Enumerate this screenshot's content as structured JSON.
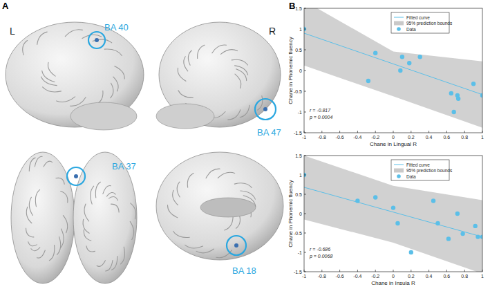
{
  "panel_labels": [
    "A",
    "B"
  ],
  "brain_views": {
    "hemisphere_labels": [
      "L",
      "R"
    ],
    "regions": [
      "BA 40",
      "BA 47",
      "BA 37",
      "BA 18"
    ],
    "color": "#2aa7e0"
  },
  "chart_data": [
    {
      "type": "scatter",
      "x_label": "Chane in Lingual R",
      "y_label": "Chane in Phonemic fluency",
      "xlim": [
        -1,
        1
      ],
      "ylim": [
        -1.5,
        1.5
      ],
      "xticks": [
        -1,
        -0.8,
        -0.6,
        -0.4,
        -0.2,
        0,
        0.2,
        0.4,
        0.6,
        0.8,
        1
      ],
      "yticks": [
        -1.5,
        -1,
        -0.5,
        0,
        0.5,
        1,
        1.5
      ],
      "grid": false,
      "legend": "top-right",
      "annotations": [
        "r = -0.817",
        "p = 0.0004"
      ],
      "series": [
        {
          "name": "Fitted curve",
          "type": "line",
          "color": "#5bbfe8",
          "x": [
            -1,
            1
          ],
          "values": [
            0.9,
            -0.58
          ]
        },
        {
          "name": "95% prediction bounds",
          "type": "area",
          "color": "#c9c9c9",
          "x": [
            -1,
            0,
            1
          ],
          "lower": [
            0.12,
            -0.62,
            -1.38
          ],
          "upper": [
            1.68,
            0.46,
            0.22
          ]
        },
        {
          "name": "Data",
          "type": "scatter",
          "color": "#5bbfe8",
          "marker": "circle",
          "x": [
            -1,
            -0.28,
            -0.2,
            0.08,
            0.1,
            0.18,
            0.3,
            0.65,
            0.68,
            0.72,
            0.73,
            0.9,
            1.0
          ],
          "values": [
            1.0,
            -0.25,
            0.42,
            0.0,
            0.33,
            0.18,
            0.33,
            -0.55,
            -1.0,
            -0.6,
            -0.68,
            -0.32,
            -0.6
          ]
        }
      ]
    },
    {
      "type": "scatter",
      "x_label": "Chane in Insula R",
      "y_label": "Chane in Phonemic fluency",
      "xlim": [
        -1,
        1
      ],
      "ylim": [
        -1.5,
        1.5
      ],
      "xticks": [
        -1,
        -0.8,
        -0.6,
        -0.4,
        -0.2,
        0,
        0.2,
        0.4,
        0.6,
        0.8,
        1
      ],
      "yticks": [
        -1.5,
        -1,
        -0.5,
        0,
        0.5,
        1,
        1.5
      ],
      "grid": false,
      "legend": "top-right",
      "annotations": [
        "r = -0.686",
        "p = 0.0068"
      ],
      "series": [
        {
          "name": "Fitted curve",
          "type": "line",
          "color": "#5bbfe8",
          "x": [
            -1,
            1
          ],
          "values": [
            0.68,
            -0.6
          ]
        },
        {
          "name": "95% prediction bounds",
          "type": "area",
          "color": "#c9c9c9",
          "x": [
            -1,
            0,
            1
          ],
          "lower": [
            -0.15,
            -0.75,
            -1.55
          ],
          "upper": [
            1.5,
            0.72,
            0.35
          ]
        },
        {
          "name": "Data",
          "type": "scatter",
          "color": "#5bbfe8",
          "marker": "circle",
          "x": [
            -1,
            -0.4,
            -0.2,
            0,
            0.05,
            0.2,
            0.45,
            0.5,
            0.62,
            0.72,
            0.78,
            0.92,
            0.95,
            1.0
          ],
          "values": [
            1.0,
            0.33,
            0.42,
            0.15,
            -0.25,
            -1.0,
            0.33,
            -0.25,
            -0.65,
            0.0,
            -0.52,
            -0.32,
            -0.6,
            -0.6
          ]
        }
      ]
    }
  ]
}
